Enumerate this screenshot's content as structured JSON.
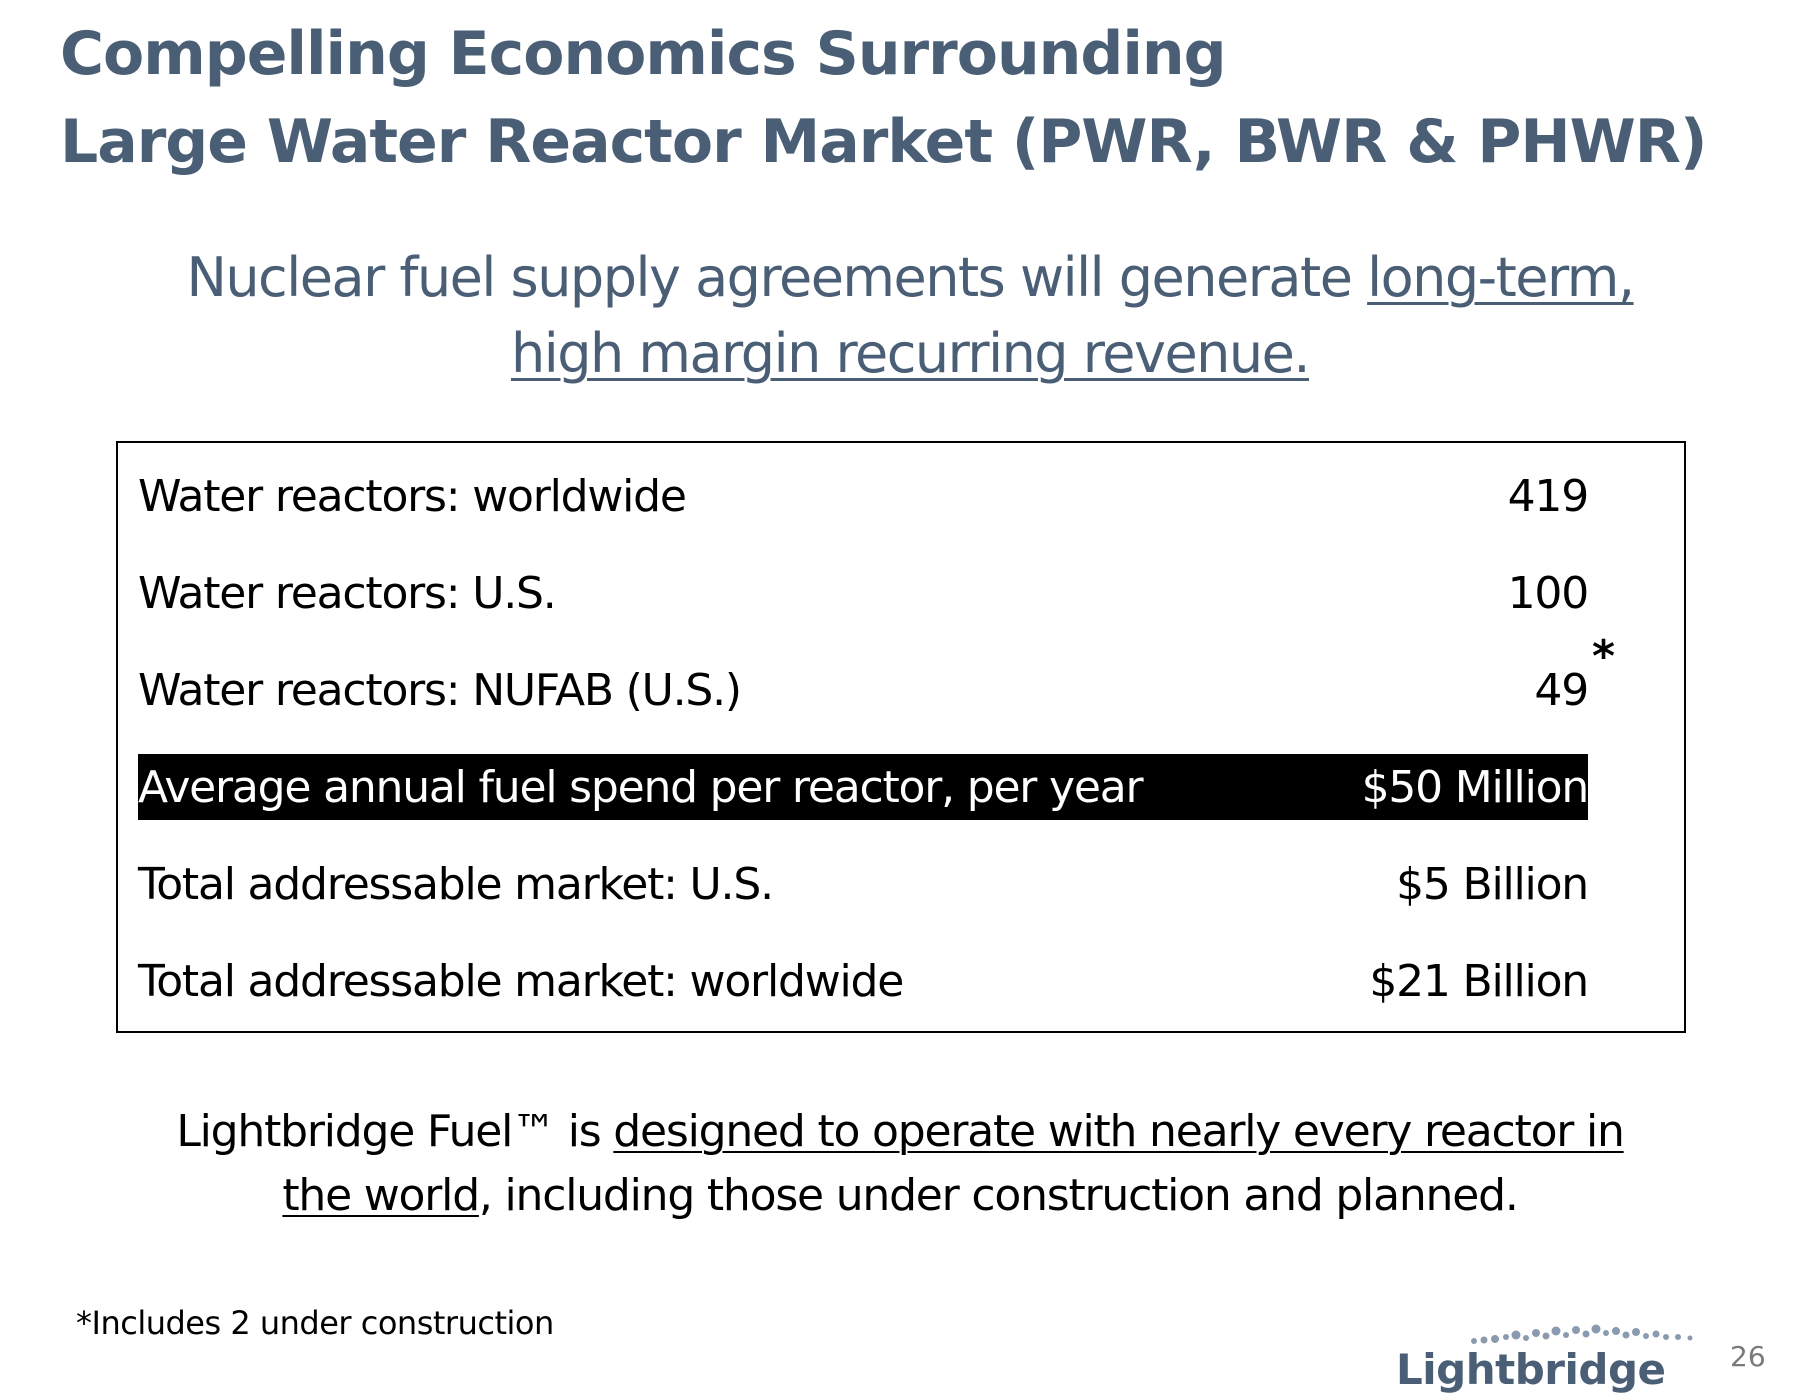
{
  "title": {
    "line1": "Compelling Economics Surrounding",
    "line2": "Large Water Reactor Market (PWR, BWR & PHWR)"
  },
  "subtitle": {
    "plain": "Nuclear fuel supply agreements will generate ",
    "underlined_1": "long-term,",
    "underlined_2": "high margin recurring revenue."
  },
  "table": {
    "rows": [
      {
        "label": "Water reactors: worldwide",
        "value": "419"
      },
      {
        "label": "Water reactors: U.S.",
        "value": "100"
      },
      {
        "label": "Water reactors: NUFAB (U.S.)",
        "value": "49"
      },
      {
        "label": "Average annual fuel spend per reactor, per year",
        "value": "$50 Million"
      },
      {
        "label": "Total addressable market: U.S.",
        "value": "$5 Billion"
      },
      {
        "label": "Total addressable market: worldwide",
        "value": "$21 Billion"
      }
    ],
    "asterisk": "*"
  },
  "statement": {
    "lead": "Lightbridge Fuel™ is ",
    "underlined": "designed to operate with nearly every reactor in the world",
    "tail": ", including those under construction and planned."
  },
  "footnote": "*Includes 2 under construction",
  "logo": {
    "text": "Lightbridge",
    "color": "#4a5e75"
  },
  "page_number": "26",
  "colors": {
    "title": "#4a5e75",
    "highlight_bg": "#000000",
    "highlight_text": "#ffffff"
  }
}
